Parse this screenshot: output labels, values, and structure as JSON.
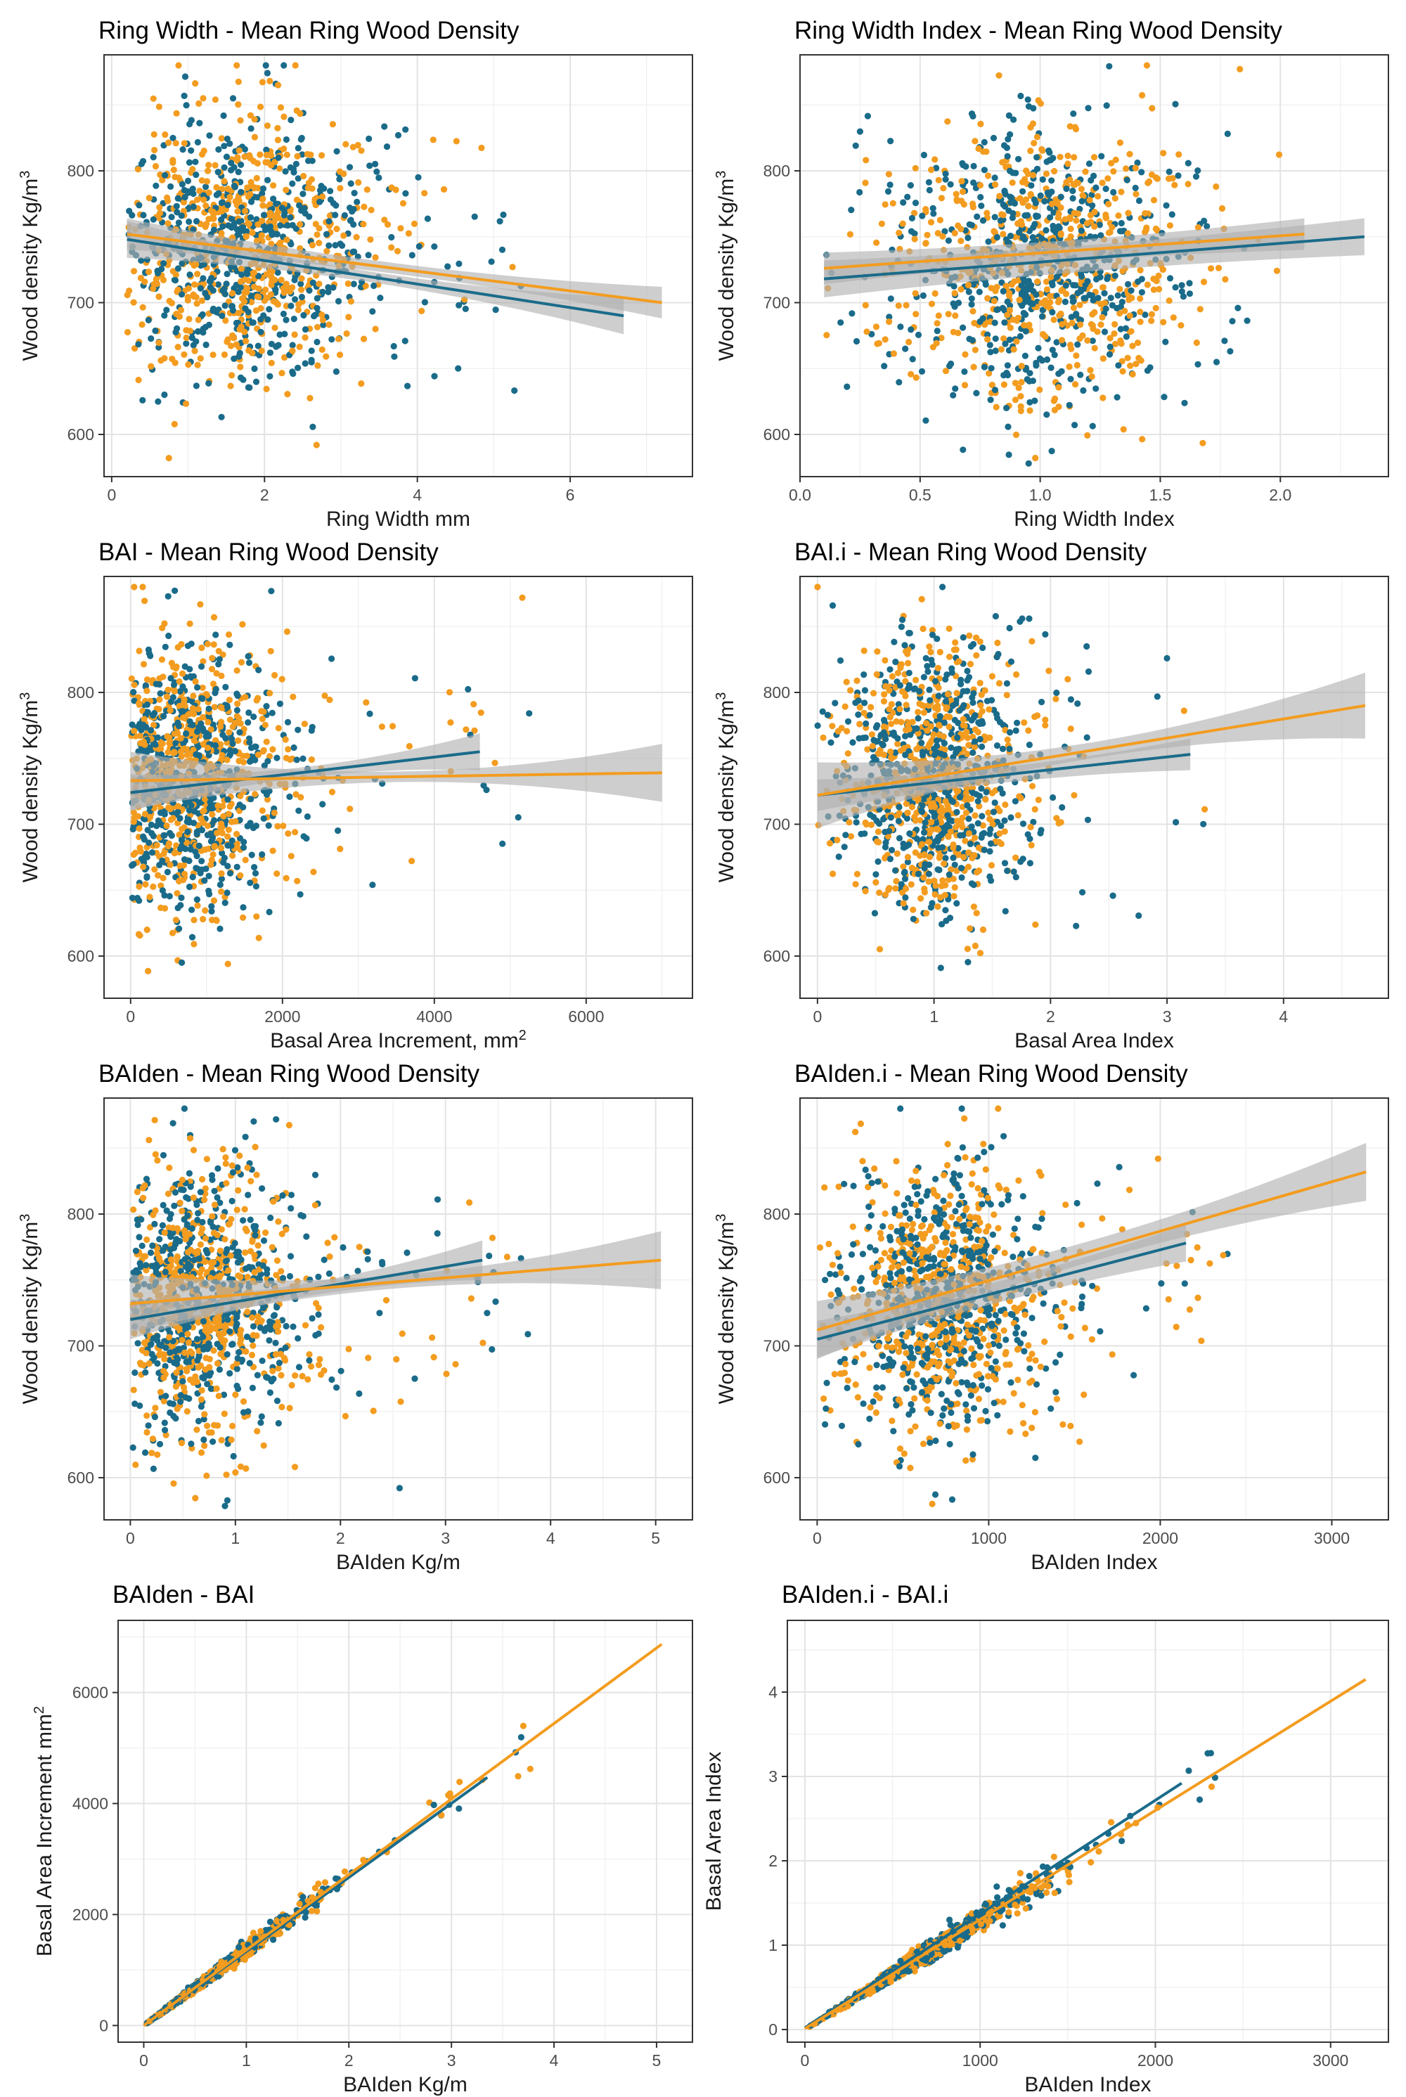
{
  "figure": {
    "series_names": [
      "blue",
      "orange"
    ],
    "colors": {
      "blue": "#1a6b8a",
      "orange": "#f39c1f",
      "band": "#b0b0b0",
      "grid_major": "#e3e3e3",
      "grid_minor": "#f2f2f2",
      "frame": "#333333"
    }
  },
  "chart_data": [
    {
      "type": "scatter",
      "title": "Ring Width - Mean Ring Wood Density",
      "xlabel": "Ring Width mm",
      "ylabel": "Wood density Kg/m",
      "ylabel_sup": "3",
      "xlim": [
        -0.1,
        7.6
      ],
      "ylim": [
        568,
        888
      ],
      "x_ticks": [
        0,
        2,
        4,
        6
      ],
      "y_ticks": [
        600,
        700,
        800
      ],
      "cloud": {
        "x_center": 1.7,
        "x_spread": 0.9,
        "x_min": 0.2,
        "x_max": 7.2,
        "y_center": 740,
        "y_spread": 50,
        "y_min": 578,
        "y_max": 880,
        "count_blue": 600,
        "count_orange": 600,
        "seed": 11
      },
      "series": [
        {
          "name": "blue",
          "fit": {
            "x": [
              0.2,
              6.7
            ],
            "y": [
              748,
              690
            ]
          },
          "band_halfwidth": [
            4,
            14
          ]
        },
        {
          "name": "orange",
          "fit": {
            "x": [
              0.2,
              7.2
            ],
            "y": [
              752,
              700
            ]
          },
          "band_halfwidth": [
            4,
            12
          ]
        }
      ]
    },
    {
      "type": "scatter",
      "title": "Ring Width Index - Mean Ring Wood Density",
      "xlabel": "Ring Width Index",
      "ylabel": "Wood density Kg/m",
      "ylabel_sup": "3",
      "xlim": [
        0.0,
        2.45
      ],
      "ylim": [
        568,
        888
      ],
      "x_ticks": [
        0.0,
        0.5,
        1.0,
        1.5,
        2.0
      ],
      "x_tick_labels": [
        "0.0",
        "0.5",
        "1.0",
        "1.5",
        "2.0"
      ],
      "y_ticks": [
        600,
        700,
        800
      ],
      "cloud": {
        "x_center": 1.0,
        "x_spread": 0.3,
        "x_min": 0.1,
        "x_max": 2.35,
        "y_center": 730,
        "y_spread": 50,
        "y_min": 578,
        "y_max": 880,
        "count_blue": 600,
        "count_orange": 600,
        "seed": 23
      },
      "series": [
        {
          "name": "blue",
          "fit": {
            "x": [
              0.1,
              2.35
            ],
            "y": [
              718,
              750
            ]
          },
          "band_halfwidth": [
            10,
            14
          ]
        },
        {
          "name": "orange",
          "fit": {
            "x": [
              0.1,
              2.1
            ],
            "y": [
              726,
              752
            ]
          },
          "band_halfwidth": [
            8,
            12
          ]
        }
      ]
    },
    {
      "type": "scatter",
      "title": "BAI - Mean Ring Wood Density",
      "xlabel": "Basal Area Increment, mm",
      "xlabel_sup": "2",
      "ylabel": "Wood density Kg/m",
      "ylabel_sup": "3",
      "xlim": [
        -350,
        7400
      ],
      "ylim": [
        568,
        888
      ],
      "x_ticks": [
        0,
        2000,
        4000,
        6000
      ],
      "y_ticks": [
        600,
        700,
        800
      ],
      "cloud": {
        "x_center": 700,
        "x_spread": 700,
        "x_min": 10,
        "x_max": 7000,
        "y_center": 735,
        "y_spread": 50,
        "y_min": 578,
        "y_max": 880,
        "count_blue": 600,
        "count_orange": 600,
        "seed": 37
      },
      "series": [
        {
          "name": "blue",
          "fit": {
            "x": [
              0,
              4600
            ],
            "y": [
              724,
              755
            ]
          },
          "band_halfwidth": [
            4,
            14
          ]
        },
        {
          "name": "orange",
          "fit": {
            "x": [
              0,
              7000
            ],
            "y": [
              733,
              739
            ]
          },
          "band_halfwidth": [
            4,
            22
          ]
        }
      ]
    },
    {
      "type": "scatter",
      "title": "BAI.i - Mean Ring Wood Density",
      "xlabel": "Basal Area Index",
      "ylabel": "Wood density Kg/m",
      "ylabel_sup": "3",
      "xlim": [
        -0.15,
        4.9
      ],
      "ylim": [
        568,
        888
      ],
      "x_ticks": [
        0,
        1,
        2,
        3,
        4
      ],
      "y_ticks": [
        600,
        700,
        800
      ],
      "cloud": {
        "x_center": 1.0,
        "x_spread": 0.4,
        "x_min": 0.0,
        "x_max": 4.7,
        "y_center": 735,
        "y_spread": 50,
        "y_min": 578,
        "y_max": 880,
        "count_blue": 600,
        "count_orange": 600,
        "seed": 41
      },
      "series": [
        {
          "name": "blue",
          "fit": {
            "x": [
              0,
              3.2
            ],
            "y": [
              722,
              753
            ]
          },
          "band_halfwidth": [
            6,
            12
          ]
        },
        {
          "name": "orange",
          "fit": {
            "x": [
              0,
              4.7
            ],
            "y": [
              722,
              790
            ]
          },
          "band_halfwidth": [
            6,
            25
          ]
        }
      ]
    },
    {
      "type": "scatter",
      "title": "BAIden - Mean Ring Wood Density",
      "xlabel": "BAIden Kg/m",
      "ylabel": "Wood density Kg/m",
      "ylabel_sup": "3",
      "xlim": [
        -0.25,
        5.35
      ],
      "ylim": [
        568,
        888
      ],
      "x_ticks": [
        0,
        1,
        2,
        3,
        4,
        5
      ],
      "y_ticks": [
        600,
        700,
        800
      ],
      "cloud": {
        "x_center": 0.6,
        "x_spread": 0.5,
        "x_min": 0.02,
        "x_max": 5.1,
        "y_center": 735,
        "y_spread": 50,
        "y_min": 578,
        "y_max": 880,
        "count_blue": 600,
        "count_orange": 600,
        "seed": 53
      },
      "series": [
        {
          "name": "blue",
          "fit": {
            "x": [
              0,
              3.35
            ],
            "y": [
              720,
              765
            ]
          },
          "band_halfwidth": [
            5,
            15
          ]
        },
        {
          "name": "orange",
          "fit": {
            "x": [
              0,
              5.05
            ],
            "y": [
              732,
              765
            ]
          },
          "band_halfwidth": [
            5,
            22
          ]
        }
      ]
    },
    {
      "type": "scatter",
      "title": "BAIden.i - Mean Ring Wood Density",
      "xlabel": "BAIden Index",
      "ylabel": "Wood density Kg/m",
      "ylabel_sup": "3",
      "xlim": [
        -100,
        3330
      ],
      "ylim": [
        568,
        888
      ],
      "x_ticks": [
        0,
        1000,
        2000,
        3000
      ],
      "y_ticks": [
        600,
        700,
        800
      ],
      "cloud": {
        "x_center": 720,
        "x_spread": 300,
        "x_min": 10,
        "x_max": 3200,
        "y_center": 735,
        "y_spread": 50,
        "y_min": 578,
        "y_max": 880,
        "count_blue": 600,
        "count_orange": 600,
        "seed": 67
      },
      "series": [
        {
          "name": "blue",
          "fit": {
            "x": [
              0,
              2150
            ],
            "y": [
              705,
              778
            ]
          },
          "band_halfwidth": [
            8,
            14
          ]
        },
        {
          "name": "orange",
          "fit": {
            "x": [
              0,
              3200
            ],
            "y": [
              712,
              832
            ]
          },
          "band_halfwidth": [
            8,
            22
          ]
        }
      ]
    },
    {
      "type": "scatter",
      "title": "BAIden - BAI",
      "xlabel": "BAIden Kg/m",
      "ylabel": "Basal Area Increment mm",
      "ylabel_sup": "2",
      "xlim": [
        -0.25,
        5.35
      ],
      "ylim": [
        -300,
        7300
      ],
      "x_ticks": [
        0,
        1,
        2,
        3,
        4,
        5
      ],
      "y_ticks": [
        0,
        2000,
        4000,
        6000
      ],
      "cloud": {
        "x_center": 0.6,
        "x_spread": 0.5,
        "x_min": 0.02,
        "x_max": 5.1,
        "slope": 1360,
        "intercept": 0,
        "rel_spread": 0.05,
        "y_min": 0,
        "y_max": 7200,
        "count_blue": 500,
        "count_orange": 500,
        "seed": 79
      },
      "series": [
        {
          "name": "blue",
          "fit": {
            "x": [
              0,
              3.35
            ],
            "y": [
              0,
              4470
            ]
          },
          "band_halfwidth": [
            0,
            0
          ]
        },
        {
          "name": "orange",
          "fit": {
            "x": [
              0,
              5.05
            ],
            "y": [
              0,
              6870
            ]
          },
          "band_halfwidth": [
            0,
            0
          ]
        }
      ]
    },
    {
      "type": "scatter",
      "title": "BAIden.i - BAI.i",
      "xlabel": "BAIden Index",
      "ylabel": "Basal Area Index",
      "xlim": [
        -100,
        3330
      ],
      "ylim": [
        -0.15,
        4.85
      ],
      "x_ticks": [
        0,
        1000,
        2000,
        3000
      ],
      "y_ticks": [
        0,
        1,
        2,
        3,
        4
      ],
      "cloud": {
        "x_center": 720,
        "x_spread": 300,
        "x_min": 10,
        "x_max": 3200,
        "slope": 0.0013,
        "intercept": 0,
        "rel_spread": 0.06,
        "y_min": 0,
        "y_max": 4.8,
        "count_blue": 500,
        "count_orange": 500,
        "seed": 97
      },
      "series": [
        {
          "name": "blue",
          "fit": {
            "x": [
              0,
              2150
            ],
            "y": [
              0.02,
              2.92
            ]
          },
          "band_halfwidth": [
            0,
            0
          ]
        },
        {
          "name": "orange",
          "fit": {
            "x": [
              0,
              3200
            ],
            "y": [
              0.01,
              4.15
            ]
          },
          "band_halfwidth": [
            0,
            0
          ]
        }
      ]
    }
  ]
}
